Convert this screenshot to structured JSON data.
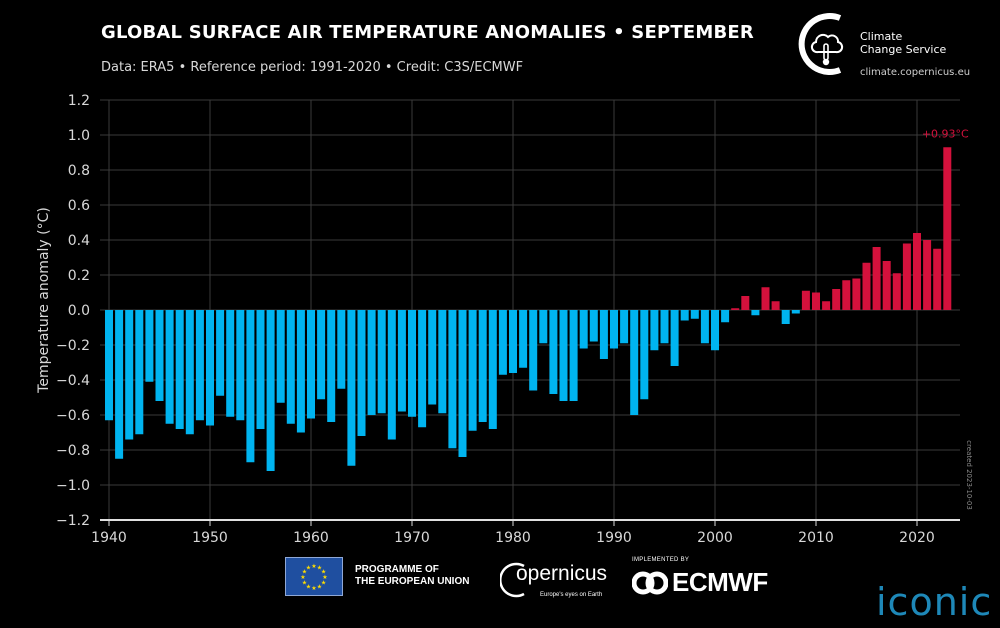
{
  "header": {
    "title": "GLOBAL SURFACE AIR TEMPERATURE ANOMALIES • SEPTEMBER",
    "subtitle": "Data: ERA5 • Reference period: 1991-2020 • Credit: C3S/ECMWF"
  },
  "branding": {
    "c3s_name_line1": "Climate",
    "c3s_name_line2": "Change Service",
    "c3s_url": "climate.copernicus.eu",
    "eu_line1": "PROGRAMME OF",
    "eu_line2": "THE EUROPEAN UNION",
    "copernicus_word": "opernicus",
    "copernicus_tag": "Europe's eyes on Earth",
    "ecmwf_implemented": "IMPLEMENTED BY",
    "ecmwf_word": "ECMWF",
    "iconic": "iconic",
    "created_note": "created 2023-10-03"
  },
  "colors": {
    "negative": "#00b4f0",
    "positive": "#d4113c",
    "grid": "#3a3a3a",
    "axis_text": "#d8d8d8",
    "annotation": "#d4113c"
  },
  "chart_data": {
    "type": "bar",
    "title": "GLOBAL SURFACE AIR TEMPERATURE ANOMALIES • SEPTEMBER",
    "ylabel": "Temperature anomaly (°C)",
    "xlabel": "",
    "ylim": [
      -1.2,
      1.2
    ],
    "yticks": [
      -1.2,
      -1.0,
      -0.8,
      -0.6,
      -0.4,
      -0.2,
      0.0,
      0.2,
      0.4,
      0.6,
      0.8,
      1.0,
      1.2
    ],
    "ytick_labels": [
      "−1.2",
      "−1.0",
      "−0.8",
      "−0.6",
      "−0.4",
      "−0.2",
      "0.0",
      "0.2",
      "0.4",
      "0.6",
      "0.8",
      "1.0",
      "1.2"
    ],
    "xticks": [
      1940,
      1950,
      1960,
      1970,
      1980,
      1990,
      2000,
      2010,
      2020
    ],
    "grid": true,
    "annotation": {
      "year": 2023,
      "text": "+0.93°C"
    },
    "x": [
      1940,
      1941,
      1942,
      1943,
      1944,
      1945,
      1946,
      1947,
      1948,
      1949,
      1950,
      1951,
      1952,
      1953,
      1954,
      1955,
      1956,
      1957,
      1958,
      1959,
      1960,
      1961,
      1962,
      1963,
      1964,
      1965,
      1966,
      1967,
      1968,
      1969,
      1970,
      1971,
      1972,
      1973,
      1974,
      1975,
      1976,
      1977,
      1978,
      1979,
      1980,
      1981,
      1982,
      1983,
      1984,
      1985,
      1986,
      1987,
      1988,
      1989,
      1990,
      1991,
      1992,
      1993,
      1994,
      1995,
      1996,
      1997,
      1998,
      1999,
      2000,
      2001,
      2002,
      2003,
      2004,
      2005,
      2006,
      2007,
      2008,
      2009,
      2010,
      2011,
      2012,
      2013,
      2014,
      2015,
      2016,
      2017,
      2018,
      2019,
      2020,
      2021,
      2022,
      2023
    ],
    "values": [
      -0.63,
      -0.85,
      -0.74,
      -0.71,
      -0.41,
      -0.52,
      -0.65,
      -0.68,
      -0.71,
      -0.63,
      -0.66,
      -0.49,
      -0.61,
      -0.63,
      -0.87,
      -0.68,
      -0.92,
      -0.53,
      -0.65,
      -0.7,
      -0.62,
      -0.51,
      -0.64,
      -0.45,
      -0.89,
      -0.72,
      -0.6,
      -0.59,
      -0.74,
      -0.58,
      -0.61,
      -0.67,
      -0.54,
      -0.59,
      -0.79,
      -0.84,
      -0.69,
      -0.64,
      -0.68,
      -0.37,
      -0.36,
      -0.33,
      -0.46,
      -0.19,
      -0.48,
      -0.52,
      -0.52,
      -0.22,
      -0.18,
      -0.28,
      -0.22,
      -0.19,
      -0.6,
      -0.51,
      -0.23,
      -0.19,
      -0.32,
      -0.06,
      -0.05,
      -0.19,
      -0.23,
      -0.07,
      0.01,
      0.08,
      -0.03,
      0.13,
      0.05,
      -0.08,
      -0.02,
      0.11,
      0.1,
      0.05,
      0.12,
      0.17,
      0.18,
      0.27,
      0.36,
      0.28,
      0.21,
      0.38,
      0.44,
      0.4,
      0.35,
      0.93
    ]
  }
}
